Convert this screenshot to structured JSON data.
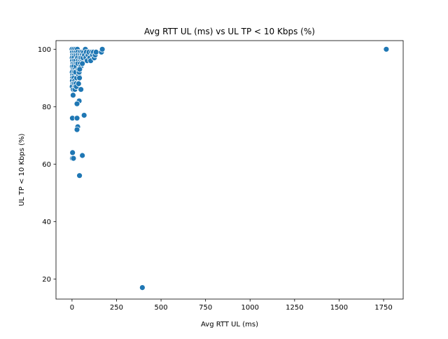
{
  "chart_data": {
    "type": "scatter",
    "title": "Avg RTT UL (ms) vs UL TP < 10 Kbps (%)",
    "xlabel": "Avg RTT UL (ms)",
    "ylabel": "UL TP < 10 Kbps (%)",
    "xlim": [
      -90,
      1860
    ],
    "ylim": [
      13,
      103
    ],
    "xticks": [
      0,
      250,
      500,
      750,
      1000,
      1250,
      1500,
      1750
    ],
    "yticks": [
      20,
      40,
      60,
      80,
      100
    ],
    "grid": false,
    "legend": "none",
    "marker_color": "#1f77b4",
    "series": [
      {
        "points": [
          [
            0,
            100
          ],
          [
            2,
            99
          ],
          [
            4,
            98
          ],
          [
            1,
            97
          ],
          [
            3,
            96
          ],
          [
            5,
            95
          ],
          [
            2,
            94
          ],
          [
            6,
            93
          ],
          [
            1,
            92
          ],
          [
            4,
            91
          ],
          [
            3,
            90
          ],
          [
            2,
            89
          ],
          [
            5,
            88
          ],
          [
            1,
            87
          ],
          [
            7,
            86
          ],
          [
            6,
            84
          ],
          [
            10,
            100
          ],
          [
            12,
            99
          ],
          [
            14,
            98
          ],
          [
            11,
            97
          ],
          [
            13,
            96
          ],
          [
            15,
            95
          ],
          [
            10,
            94
          ],
          [
            16,
            93
          ],
          [
            12,
            92
          ],
          [
            14,
            91
          ],
          [
            11,
            90
          ],
          [
            15,
            89
          ],
          [
            13,
            88
          ],
          [
            17,
            87
          ],
          [
            16,
            86
          ],
          [
            20,
            100
          ],
          [
            22,
            99
          ],
          [
            24,
            98
          ],
          [
            21,
            96
          ],
          [
            25,
            95
          ],
          [
            23,
            94
          ],
          [
            20,
            92
          ],
          [
            26,
            90
          ],
          [
            22,
            88
          ],
          [
            24,
            87
          ],
          [
            30,
            100
          ],
          [
            32,
            99
          ],
          [
            34,
            98
          ],
          [
            31,
            97
          ],
          [
            35,
            96
          ],
          [
            33,
            95
          ],
          [
            36,
            93
          ],
          [
            38,
            91
          ],
          [
            40,
            92
          ],
          [
            42,
            90
          ],
          [
            37,
            88
          ],
          [
            45,
            99
          ],
          [
            47,
            98
          ],
          [
            44,
            97
          ],
          [
            48,
            96
          ],
          [
            46,
            95
          ],
          [
            50,
            94
          ],
          [
            43,
            93
          ],
          [
            55,
            99
          ],
          [
            57,
            98
          ],
          [
            52,
            97
          ],
          [
            60,
            96
          ],
          [
            58,
            95
          ],
          [
            62,
            97
          ],
          [
            65,
            99
          ],
          [
            70,
            98
          ],
          [
            75,
            100
          ],
          [
            78,
            97
          ],
          [
            80,
            99
          ],
          [
            85,
            96
          ],
          [
            90,
            98
          ],
          [
            95,
            99
          ],
          [
            100,
            97
          ],
          [
            105,
            96
          ],
          [
            110,
            99
          ],
          [
            115,
            98
          ],
          [
            120,
            99
          ],
          [
            125,
            97
          ],
          [
            130,
            98
          ],
          [
            135,
            99
          ],
          [
            165,
            99
          ],
          [
            170,
            100
          ],
          [
            50,
            86
          ],
          [
            40,
            82
          ],
          [
            28,
            81
          ],
          [
            68,
            77
          ],
          [
            2,
            76
          ],
          [
            28,
            76
          ],
          [
            32,
            73
          ],
          [
            28,
            72
          ],
          [
            3,
            64
          ],
          [
            58,
            63
          ],
          [
            2,
            62
          ],
          [
            8,
            62
          ],
          [
            42,
            56
          ],
          [
            395,
            17
          ],
          [
            1765,
            100
          ]
        ]
      }
    ]
  }
}
